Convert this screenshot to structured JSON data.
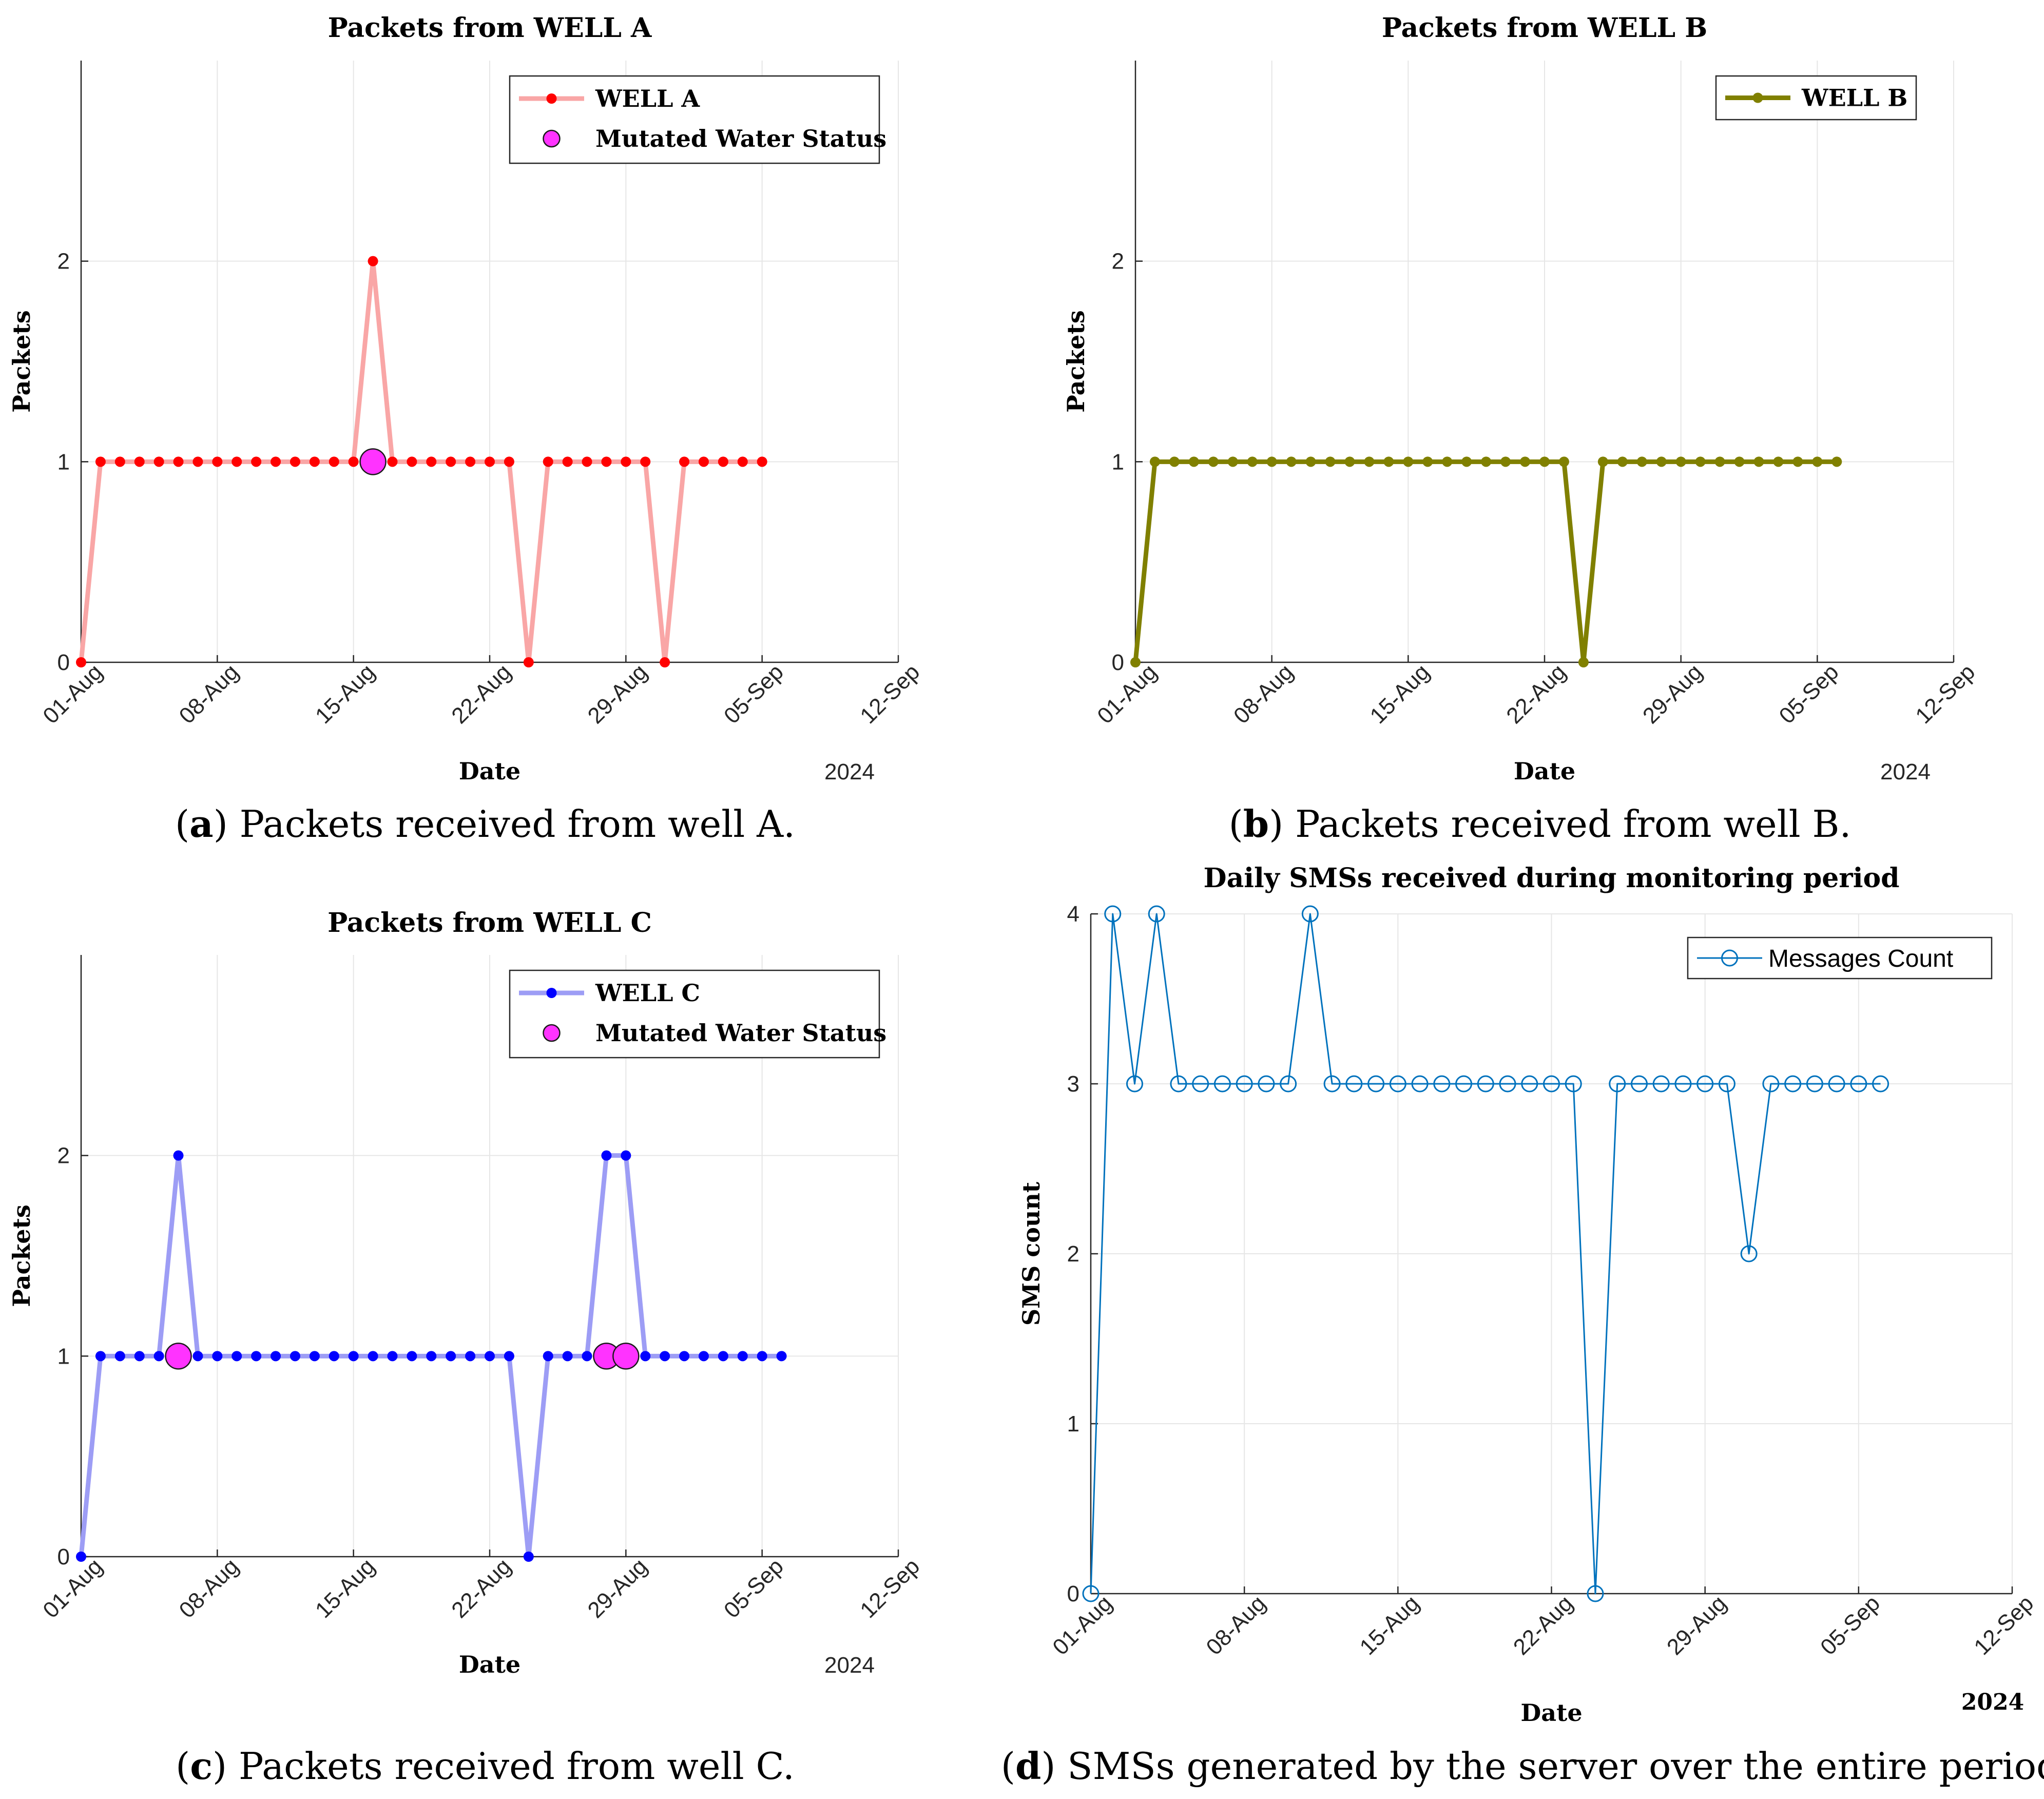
{
  "chart_data": [
    {
      "id": "a",
      "type": "line",
      "title": "Packets from WELL A",
      "xlabel": "Date",
      "ylabel": "Packets",
      "year_label": "2024",
      "x_ticks": [
        "01-Aug",
        "08-Aug",
        "15-Aug",
        "22-Aug",
        "29-Aug",
        "05-Sep",
        "12-Sep"
      ],
      "x_range_days": [
        0,
        42
      ],
      "y_ticks": [
        "0",
        "1",
        "2"
      ],
      "ylim": [
        0,
        3
      ],
      "grid": true,
      "legend_position": "top-right",
      "series": [
        {
          "name": "WELL A",
          "color": "#ff0000",
          "line_color": "#f9a6a6",
          "start_date": "01-Aug",
          "values": [
            0,
            1,
            1,
            1,
            1,
            1,
            1,
            1,
            1,
            1,
            1,
            1,
            1,
            1,
            1,
            2,
            1,
            1,
            1,
            1,
            1,
            1,
            1,
            0,
            1,
            1,
            1,
            1,
            1,
            1,
            0,
            1,
            1,
            1,
            1,
            1
          ]
        }
      ],
      "markers": {
        "name": "Mutated Water Status",
        "color": "#ff33ff",
        "points": [
          {
            "day": 15,
            "value": 1
          }
        ]
      },
      "caption_letter": "a",
      "caption_text": " Packets received from well A."
    },
    {
      "id": "b",
      "type": "line",
      "title": "Packets from WELL B",
      "xlabel": "Date",
      "ylabel": "Packets",
      "year_label": "2024",
      "x_ticks": [
        "01-Aug",
        "08-Aug",
        "15-Aug",
        "22-Aug",
        "29-Aug",
        "05-Sep",
        "12-Sep"
      ],
      "x_range_days": [
        0,
        42
      ],
      "y_ticks": [
        "0",
        "1",
        "2"
      ],
      "ylim": [
        0,
        3
      ],
      "grid": true,
      "legend_position": "top-right",
      "series": [
        {
          "name": "WELL B",
          "color": "#808000",
          "line_color": "#808000",
          "start_date": "01-Aug",
          "values": [
            0,
            1,
            1,
            1,
            1,
            1,
            1,
            1,
            1,
            1,
            1,
            1,
            1,
            1,
            1,
            1,
            1,
            1,
            1,
            1,
            1,
            1,
            1,
            0,
            1,
            1,
            1,
            1,
            1,
            1,
            1,
            1,
            1,
            1,
            1,
            1,
            1
          ]
        }
      ],
      "markers": null,
      "caption_letter": "b",
      "caption_text": " Packets received from well B."
    },
    {
      "id": "c",
      "type": "line",
      "title": "Packets from WELL C",
      "xlabel": "Date",
      "ylabel": "Packets",
      "year_label": "2024",
      "x_ticks": [
        "01-Aug",
        "08-Aug",
        "15-Aug",
        "22-Aug",
        "29-Aug",
        "05-Sep",
        "12-Sep"
      ],
      "x_range_days": [
        0,
        42
      ],
      "y_ticks": [
        "0",
        "1",
        "2"
      ],
      "ylim": [
        0,
        3
      ],
      "grid": true,
      "legend_position": "top-right",
      "series": [
        {
          "name": "WELL C",
          "color": "#0000ff",
          "line_color": "#9d9df5",
          "start_date": "01-Aug",
          "values": [
            0,
            1,
            1,
            1,
            1,
            2,
            1,
            1,
            1,
            1,
            1,
            1,
            1,
            1,
            1,
            1,
            1,
            1,
            1,
            1,
            1,
            1,
            1,
            0,
            1,
            1,
            1,
            2,
            2,
            1,
            1,
            1,
            1,
            1,
            1,
            1,
            1
          ]
        }
      ],
      "markers": {
        "name": "Mutated Water Status",
        "color": "#ff33ff",
        "points": [
          {
            "day": 5,
            "value": 1
          },
          {
            "day": 27,
            "value": 1
          },
          {
            "day": 28,
            "value": 1
          }
        ]
      },
      "caption_letter": "c",
      "caption_text": " Packets received from well C."
    },
    {
      "id": "d",
      "type": "line",
      "title": "Daily SMSs received during monitoring period",
      "xlabel": "Date",
      "ylabel": "SMS count",
      "year_label": "2024",
      "x_ticks": [
        "01-Aug",
        "08-Aug",
        "15-Aug",
        "22-Aug",
        "29-Aug",
        "05-Sep",
        "12-Sep"
      ],
      "x_range_days": [
        0,
        42
      ],
      "y_ticks": [
        "0",
        "1",
        "2",
        "3",
        "4"
      ],
      "ylim": [
        0,
        4
      ],
      "grid": true,
      "legend_position": "top-right",
      "series": [
        {
          "name": "Messages Count",
          "color": "#0072bd",
          "line_color": "#0072bd",
          "start_date": "01-Aug",
          "values": [
            0,
            4,
            3,
            4,
            3,
            3,
            3,
            3,
            3,
            3,
            4,
            3,
            3,
            3,
            3,
            3,
            3,
            3,
            3,
            3,
            3,
            3,
            3,
            0,
            3,
            3,
            3,
            3,
            3,
            3,
            2,
            3,
            3,
            3,
            3,
            3,
            3
          ]
        }
      ],
      "markers": null,
      "caption_letter": "d",
      "caption_text": " SMSs generated by the server over the entire period."
    }
  ]
}
